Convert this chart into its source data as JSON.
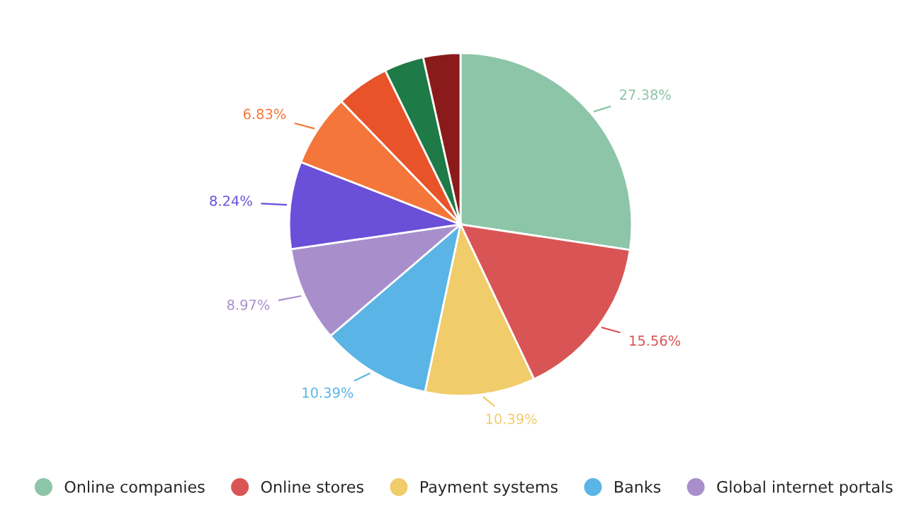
{
  "chart_data": {
    "type": "pie",
    "categories": [
      "Online companies",
      "Online stores",
      "Payment systems",
      "Banks",
      "Global internet portals",
      null,
      null,
      null,
      null,
      null
    ],
    "values": [
      27.38,
      15.56,
      10.39,
      10.39,
      8.97,
      8.24,
      6.83,
      5.0,
      3.74,
      3.5
    ],
    "colors": [
      "#8cc5a8",
      "#d95555",
      "#f0cc6a",
      "#5ab4e5",
      "#a88fcc",
      "#6a4fd9",
      "#f5763a",
      "#e8532a",
      "#1e7a46",
      "#8b1a1a"
    ],
    "value_labels": [
      "27.38%",
      "15.56%",
      "10.39%",
      "10.39%",
      "8.97%",
      "8.24%",
      "6.83%",
      null,
      null,
      null
    ],
    "legend": "bottom"
  }
}
